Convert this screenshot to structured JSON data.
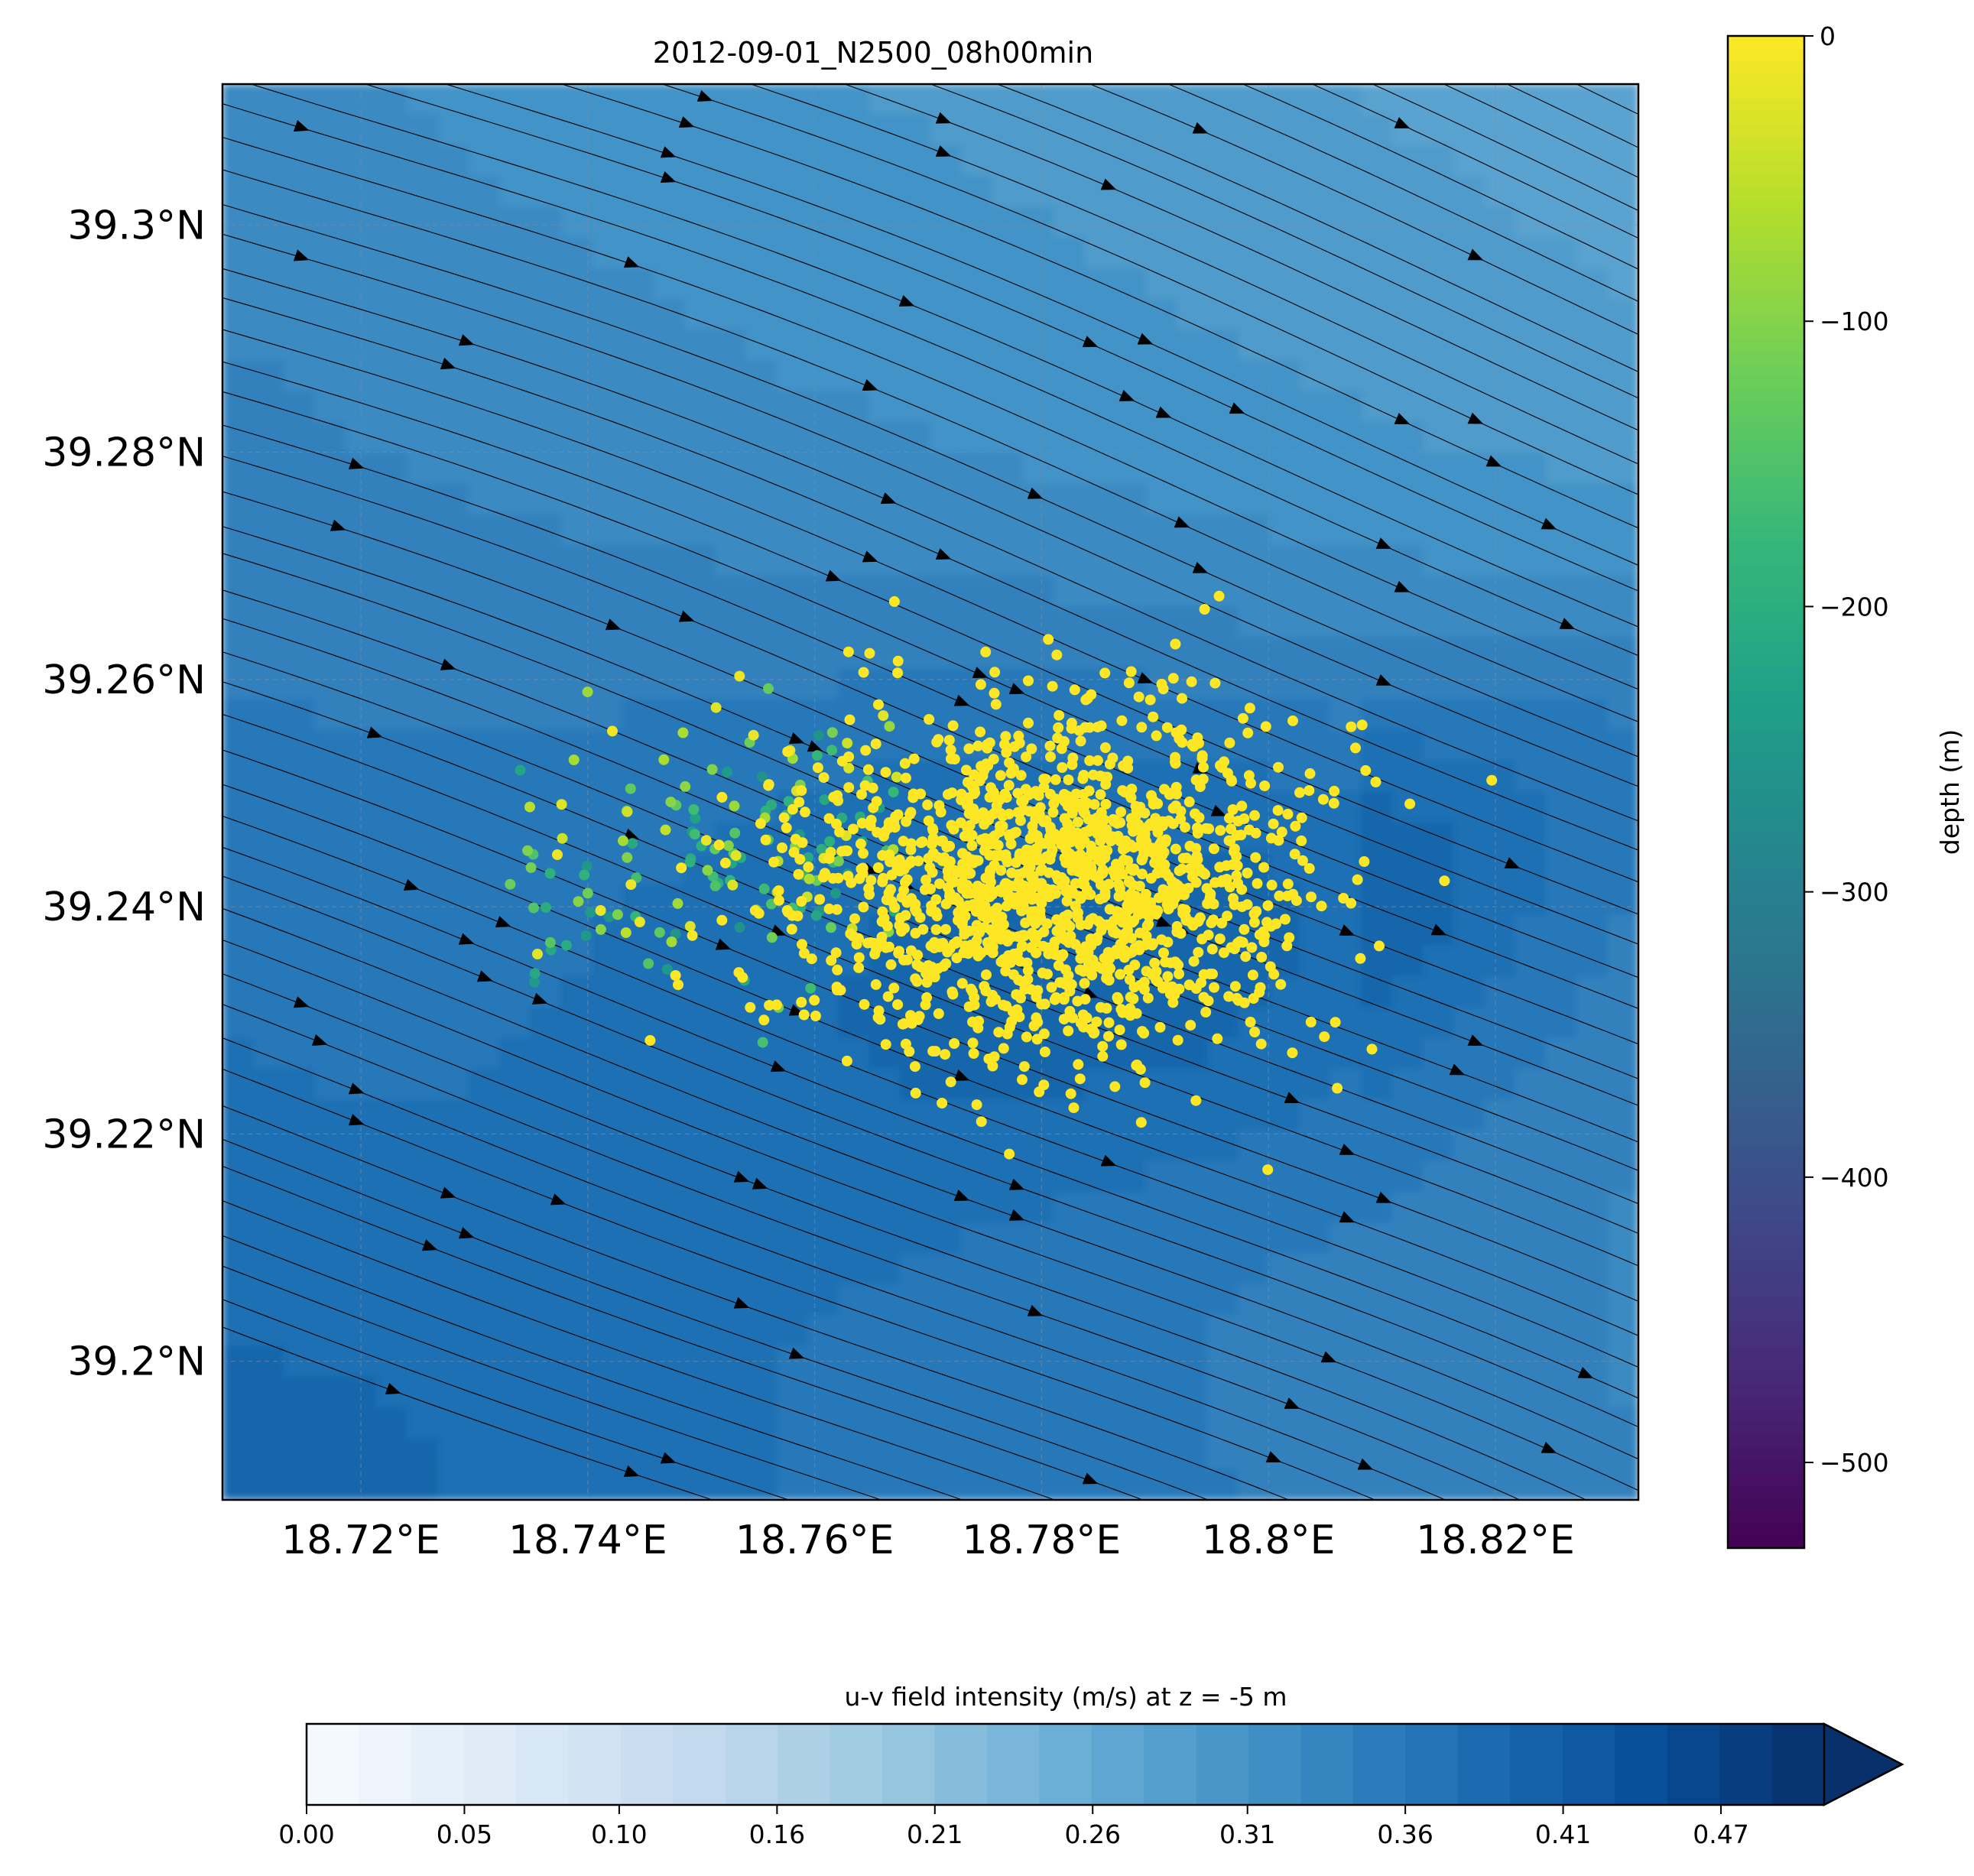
{
  "chart_data": [
    {
      "type": "scatter",
      "title": "2012-09-01_N2500_08h00min",
      "x_tick_labels": [
        "18.72°E",
        "18.74°E",
        "18.76°E",
        "18.78°E",
        "18.8°E",
        "18.82°E"
      ],
      "x_ticks": [
        18.72,
        18.74,
        18.76,
        18.78,
        18.8,
        18.82
      ],
      "y_tick_labels": [
        "39.3°N",
        "39.28°N",
        "39.26°N",
        "39.24°N",
        "39.22°N",
        "39.2°N"
      ],
      "y_ticks": [
        39.3,
        39.28,
        39.26,
        39.24,
        39.22,
        39.2
      ],
      "xlim": [
        18.7078,
        18.8326
      ],
      "ylim": [
        39.1878,
        39.3124
      ],
      "grid": true,
      "particles": {
        "count": 2500,
        "center": [
          18.781,
          39.2418
        ],
        "spread_lon": 0.011,
        "spread_lat": 0.0075,
        "core_depth": 0,
        "deep_tail_lon_range": [
          18.733,
          18.768
        ],
        "deep_tail_depth_range": [
          -260,
          -10
        ]
      },
      "background_field": {
        "variable": "u-v field intensity (m/s) at z = -5 m",
        "min_corner": "top-right",
        "min_value": 0.23,
        "max_value": 0.44,
        "max_near": [
          18.79,
          39.24
        ]
      },
      "streamlines": {
        "direction": "east-southeast",
        "arrow_color": "#000000"
      }
    },
    {
      "type": "colorbar",
      "label": "depth (m)",
      "colormap": "viridis",
      "range": [
        -530,
        0
      ],
      "ticks": [
        0,
        -100,
        -200,
        -300,
        -400,
        -500
      ],
      "tick_labels": [
        "0",
        "−100",
        "−200",
        "−300",
        "−400",
        "−500"
      ],
      "orientation": "vertical"
    },
    {
      "type": "colorbar",
      "label": "u-v field intensity (m/s) at z = -5 m",
      "colormap": "Blues",
      "range": [
        0,
        0.5
      ],
      "levels": 29,
      "extend": "max",
      "ticks": [
        0.0,
        0.052,
        0.103,
        0.155,
        0.207,
        0.259,
        0.31,
        0.362,
        0.414,
        0.466
      ],
      "tick_labels": [
        "0.00",
        "0.05",
        "0.10",
        "0.16",
        "0.21",
        "0.26",
        "0.31",
        "0.36",
        "0.41",
        "0.47"
      ],
      "orientation": "horizontal"
    }
  ]
}
